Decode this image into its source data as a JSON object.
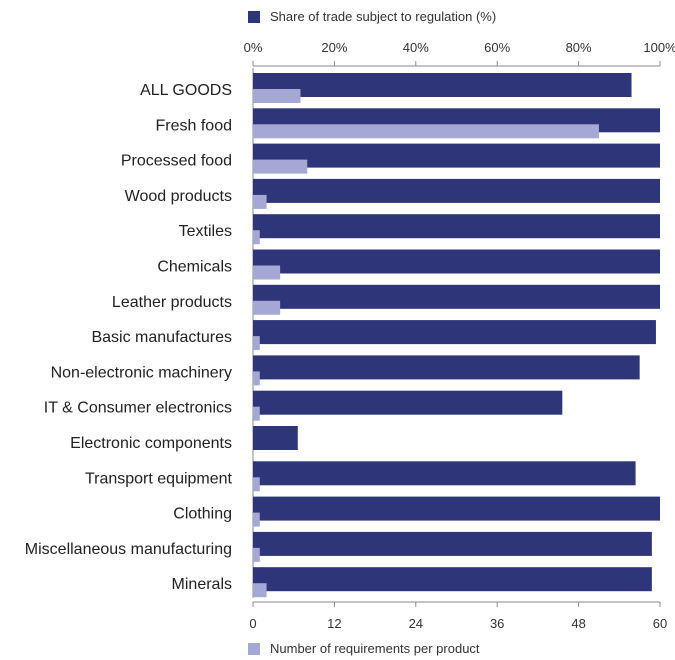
{
  "chart_data": {
    "type": "bar",
    "orientation": "horizontal",
    "categories": [
      "ALL GOODS",
      "Fresh food",
      "Processed food",
      "Wood products",
      "Textiles",
      "Chemicals",
      "Leather products",
      "Basic manufactures",
      "Non-electronic machinery",
      "IT & Consumer electronics",
      "Electronic components",
      "Transport equipment",
      "Clothing",
      "Miscellaneous manufacturing",
      "Minerals"
    ],
    "series": [
      {
        "name": "Share of trade subject to regulation (%)",
        "color": "#2e3578",
        "axis": "top",
        "values": [
          93,
          100,
          100,
          100,
          100,
          100,
          100,
          99,
          95,
          76,
          11,
          94,
          100,
          98,
          98
        ]
      },
      {
        "name": "Number of requirements per product",
        "color": "#a5a8d4",
        "axis": "bottom",
        "values": [
          7,
          51,
          8,
          2,
          1,
          4,
          4,
          1,
          1,
          1,
          0,
          1,
          1,
          1,
          2
        ]
      }
    ],
    "top_axis": {
      "ticks": [
        "0%",
        "20%",
        "40%",
        "60%",
        "80%",
        "100%"
      ],
      "range": [
        0,
        100
      ]
    },
    "bottom_axis": {
      "ticks": [
        "0",
        "12",
        "24",
        "36",
        "48",
        "60"
      ],
      "range": [
        0,
        60
      ]
    },
    "grid": false,
    "legend_top": "top",
    "legend_bottom": "bottom"
  }
}
